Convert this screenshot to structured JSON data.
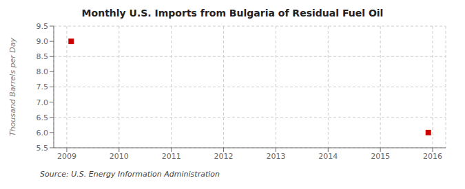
{
  "chart_data": {
    "type": "scatter",
    "title": "Monthly U.S. Imports from Bulgaria of Residual Fuel Oil",
    "y_label": "Thousand Barrels per Day",
    "annotations": [
      "Source: U.S. Energy Information Administration"
    ],
    "x": [
      2009.083,
      2015.917
    ],
    "values": [
      9.0,
      6.0
    ],
    "color": "#cc0000",
    "marker": "square",
    "xlim": [
      2008.75,
      2016.25
    ],
    "xticks": [
      2009,
      2010,
      2011,
      2012,
      2013,
      2014,
      2015,
      2016
    ],
    "ylim": [
      5.5,
      9.5
    ],
    "yticks": [
      5.5,
      {
        "value": 6.0,
        "label": "6.0"
      },
      6.5,
      {
        "value": 7.0,
        "label": "7.0"
      },
      7.5,
      {
        "value": 8.0,
        "label": "8.0"
      },
      8.5,
      {
        "value": 9.0,
        "label": "9.0"
      },
      9.5
    ],
    "grid": true
  }
}
